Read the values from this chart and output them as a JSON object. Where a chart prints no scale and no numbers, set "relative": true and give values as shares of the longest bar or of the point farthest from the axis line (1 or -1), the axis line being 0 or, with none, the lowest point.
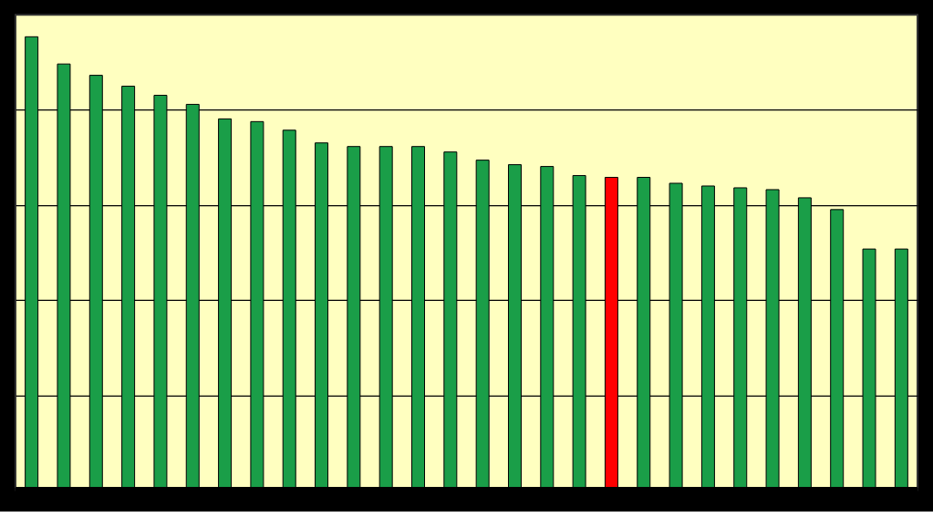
{
  "chart_data": {
    "type": "bar",
    "relative": true,
    "grid": "y",
    "categories": [
      null,
      null,
      null,
      null,
      null,
      null,
      null,
      null,
      null,
      null,
      null,
      null,
      null,
      null,
      null,
      null,
      null,
      null,
      null,
      null,
      null,
      null,
      null,
      null,
      null,
      null,
      null,
      null
    ],
    "values": [
      1,
      0.94,
      0.915,
      0.891,
      0.871,
      0.851,
      0.819,
      0.813,
      0.794,
      0.766,
      0.758,
      0.758,
      0.758,
      0.746,
      0.728,
      0.718,
      0.714,
      0.694,
      0.69,
      0.69,
      0.677,
      0.671,
      0.667,
      0.663,
      0.645,
      0.619,
      0.532,
      0.532
    ],
    "colors": [
      "#1a9e48",
      "#1a9e48",
      "#1a9e48",
      "#1a9e48",
      "#1a9e48",
      "#1a9e48",
      "#1a9e48",
      "#1a9e48",
      "#1a9e48",
      "#1a9e48",
      "#1a9e48",
      "#1a9e48",
      "#1a9e48",
      "#1a9e48",
      "#1a9e48",
      "#1a9e48",
      "#1a9e48",
      "#1a9e48",
      "#ff0000",
      "#1a9e48",
      "#1a9e48",
      "#1a9e48",
      "#1a9e48",
      "#1a9e48",
      "#1a9e48",
      "#1a9e48",
      "#1a9e48",
      "#1a9e48"
    ]
  }
}
